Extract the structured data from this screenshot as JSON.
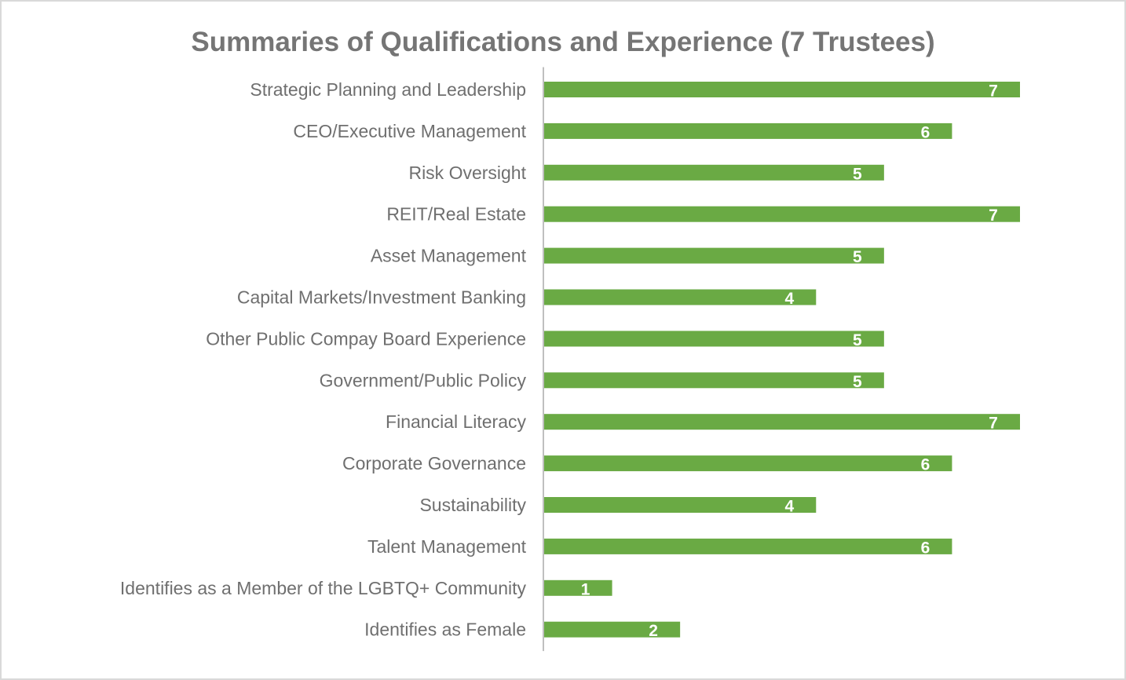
{
  "colors": {
    "bar": "#6aaa44",
    "axis": "#bfbfbf",
    "label_text": "#6f6f6f",
    "title_text": "#757575",
    "data_label_text": "#ffffff",
    "border": "#d9d9d9"
  },
  "chart_data": {
    "type": "bar",
    "orientation": "horizontal",
    "title": "Summaries of Qualifications and Experience (7 Trustees)",
    "xlabel": "",
    "ylabel": "",
    "xlim": [
      0,
      7
    ],
    "grid": false,
    "legend": "none",
    "categories": [
      "Strategic Planning and Leadership",
      "CEO/Executive Management",
      "Risk Oversight",
      "REIT/Real Estate",
      "Asset Management",
      "Capital Markets/Investment Banking",
      "Other Public Compay Board Experience",
      "Government/Public Policy",
      "Financial Literacy",
      "Corporate Governance",
      "Sustainability",
      "Talent Management",
      "Identifies as a Member of the LGBTQ+ Community",
      "Identifies as Female"
    ],
    "values": [
      7,
      6,
      5,
      7,
      5,
      4,
      5,
      5,
      7,
      6,
      4,
      6,
      1,
      2
    ]
  }
}
